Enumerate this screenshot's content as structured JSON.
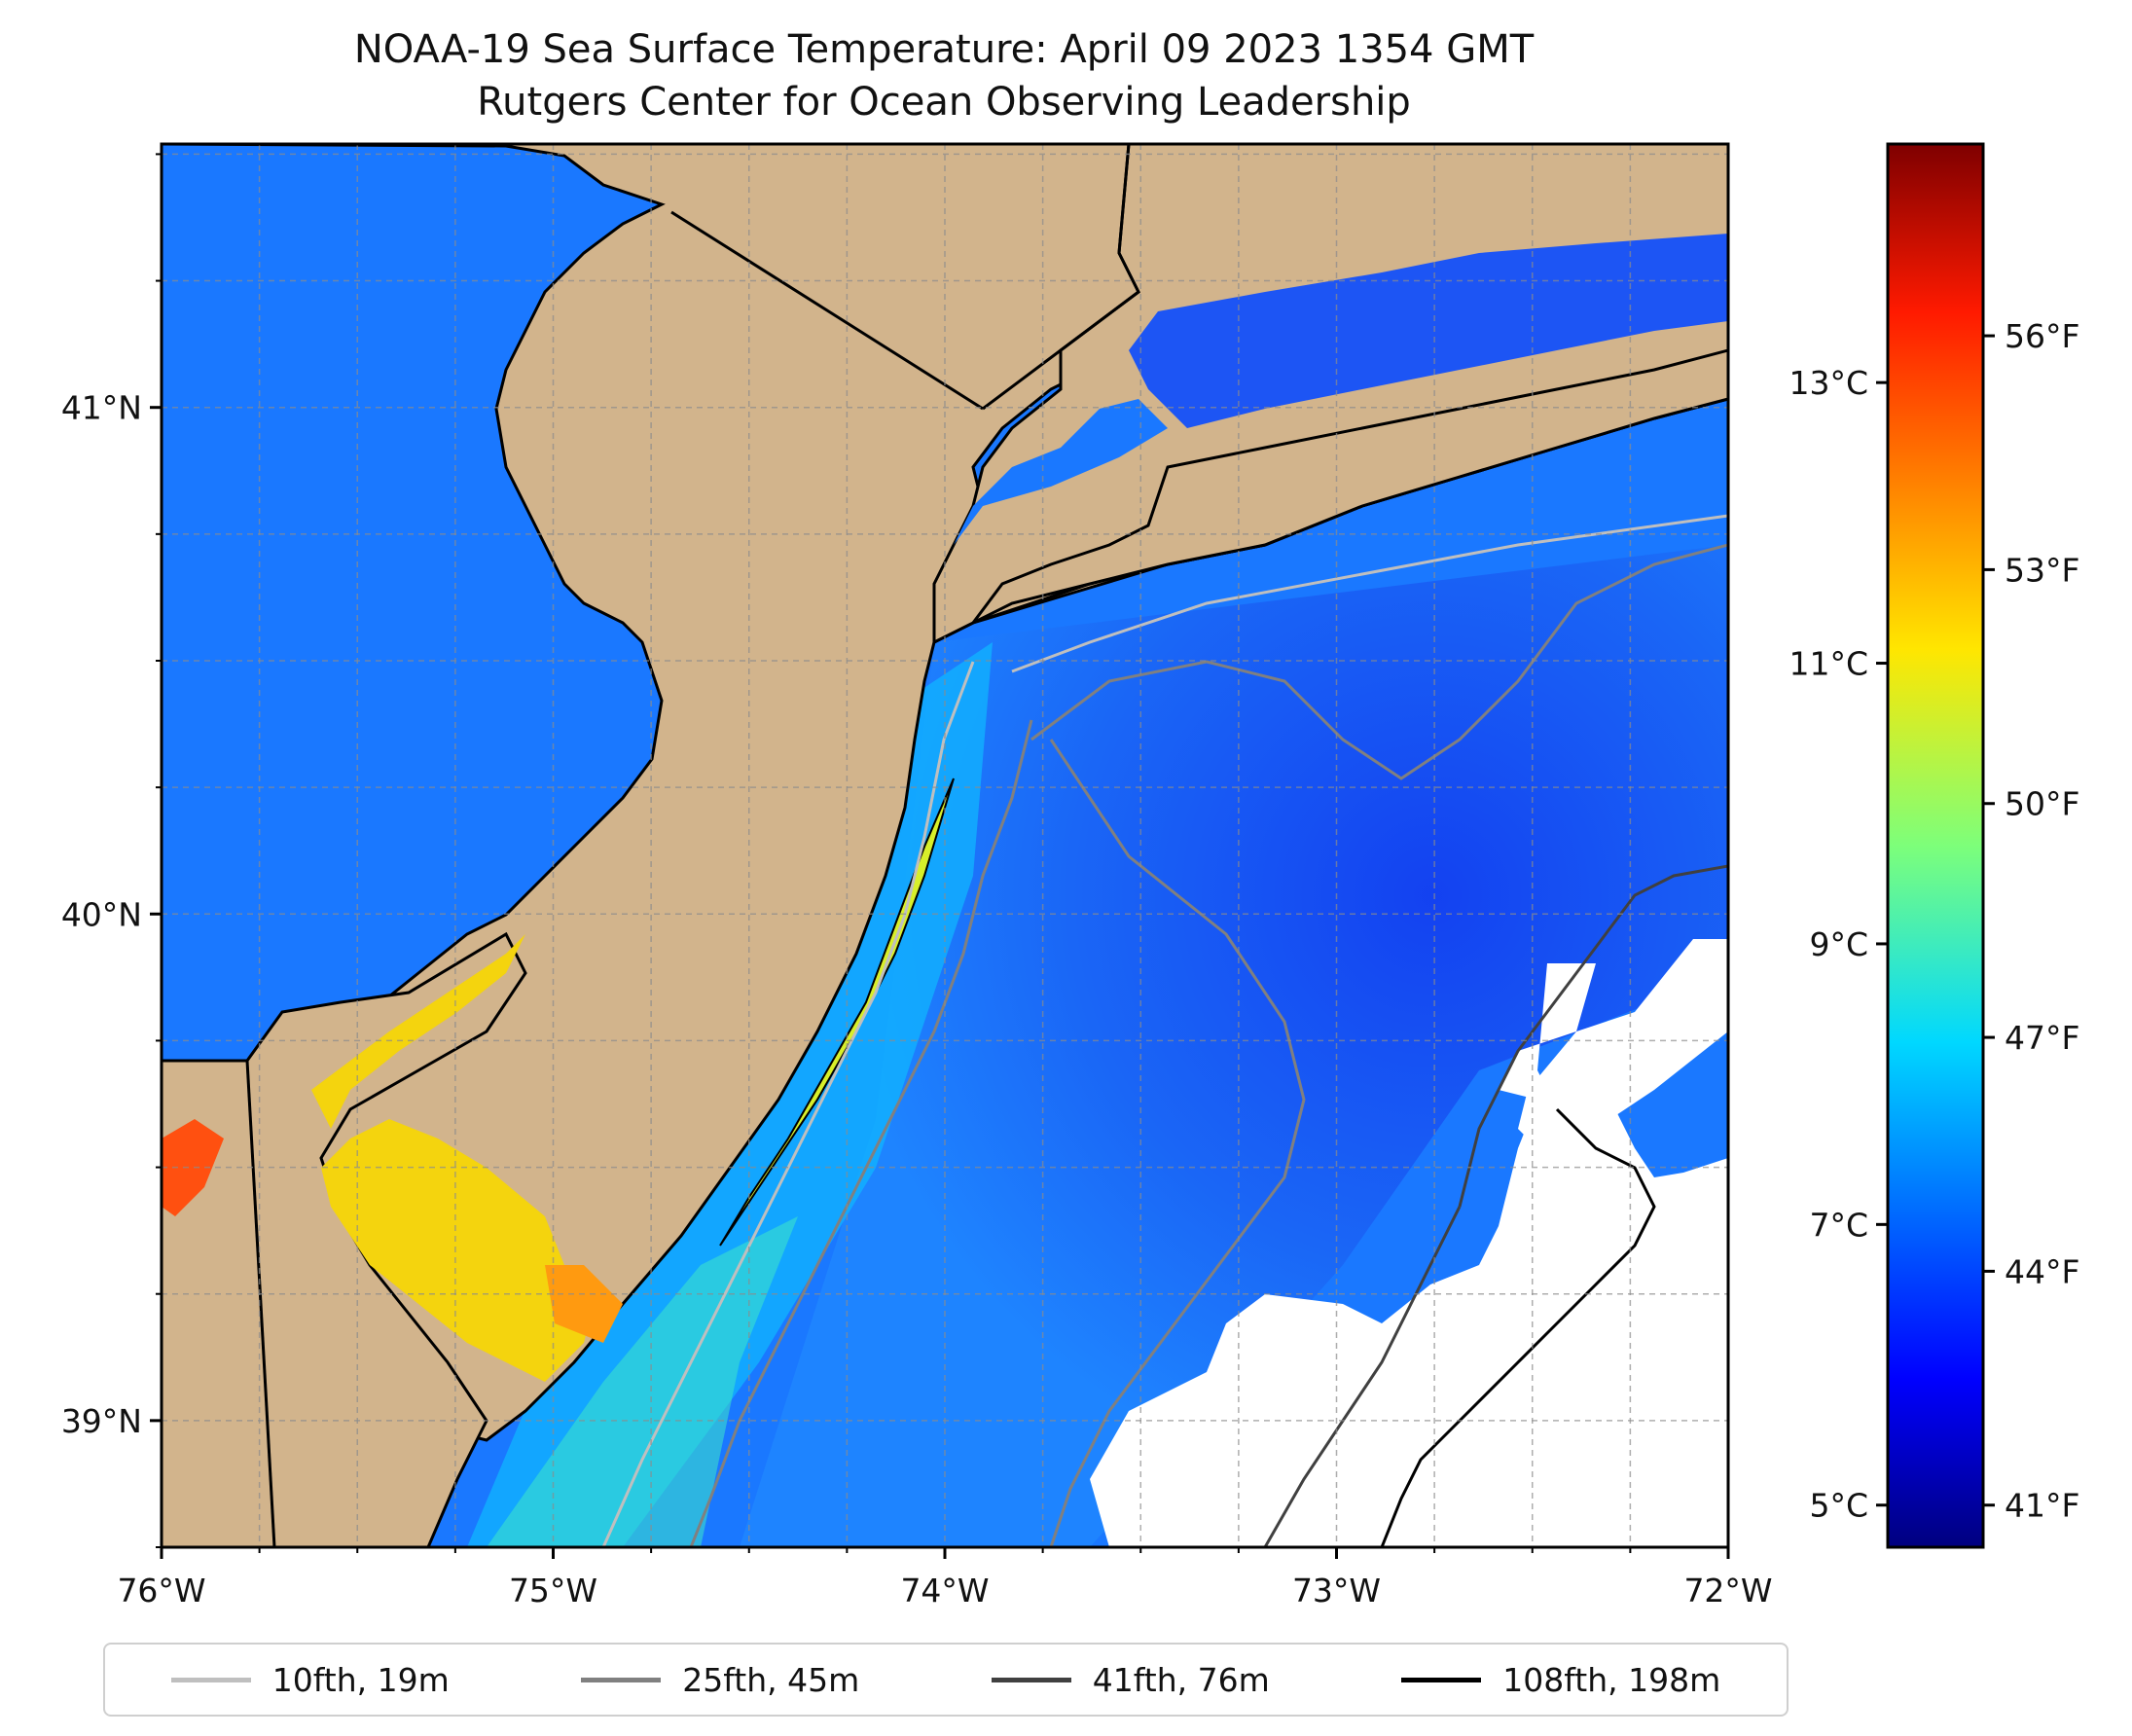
{
  "title": {
    "line1": "NOAA-19 Sea Surface Temperature: April 09 2023 1354 GMT",
    "line2": "Rutgers Center for Ocean Observing Leadership"
  },
  "map": {
    "x_range": [
      -76.0,
      -72.0
    ],
    "y_range": [
      38.75,
      41.52
    ],
    "lon_ticks": [
      {
        "value": -76,
        "label": "76°W"
      },
      {
        "value": -75,
        "label": "75°W"
      },
      {
        "value": -74,
        "label": "74°W"
      },
      {
        "value": -73,
        "label": "73°W"
      },
      {
        "value": -72,
        "label": "72°W"
      }
    ],
    "lat_ticks": [
      {
        "value": 41,
        "label": "41°N"
      },
      {
        "value": 40,
        "label": "40°N"
      },
      {
        "value": 39,
        "label": "39°N"
      }
    ],
    "land_color": "#d2b48c",
    "no_data_color": "#ffffff"
  },
  "colorbar": {
    "colormap": "jet",
    "range_c": [
      4.7,
      14.7
    ],
    "celsius_ticks": [
      {
        "value": 5,
        "label": "5°C"
      },
      {
        "value": 7,
        "label": "7°C"
      },
      {
        "value": 9,
        "label": "9°C"
      },
      {
        "value": 11,
        "label": "11°C"
      },
      {
        "value": 13,
        "label": "13°C"
      }
    ],
    "fahrenheit_ticks": [
      {
        "value": 41,
        "label": "41°F"
      },
      {
        "value": 44,
        "label": "44°F"
      },
      {
        "value": 47,
        "label": "47°F"
      },
      {
        "value": 50,
        "label": "50°F"
      },
      {
        "value": 53,
        "label": "53°F"
      },
      {
        "value": 56,
        "label": "56°F"
      }
    ]
  },
  "legend": [
    {
      "label": "10fth, 19m",
      "color": "#bfbfbf"
    },
    {
      "label": "25fth, 45m",
      "color": "#808080"
    },
    {
      "label": "41fth, 76m",
      "color": "#404040"
    },
    {
      "label": "108fth, 198m",
      "color": "#000000"
    }
  ]
}
